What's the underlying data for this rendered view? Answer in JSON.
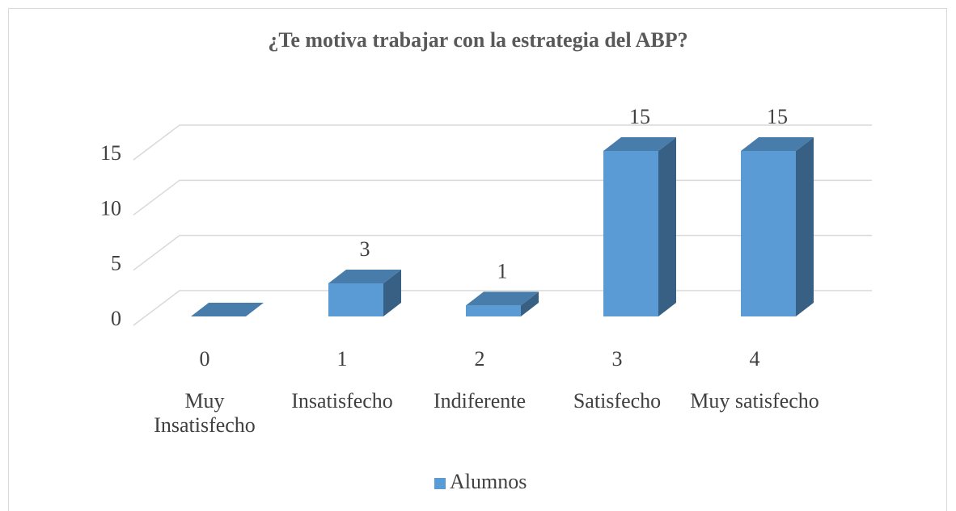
{
  "chart_data": {
    "type": "bar3d",
    "title": "¿Te motiva trabajar con la estrategia del ABP?",
    "categories": [
      "0",
      "1",
      "2",
      "3",
      "4"
    ],
    "category_labels": [
      "Muy Insatisfecho",
      "Insatisfecho",
      "Indiferente",
      "Satisfecho",
      "Muy satisfecho"
    ],
    "series": [
      {
        "name": "Alumnos",
        "color": "#5b9bd5",
        "values": [
          0,
          3,
          1,
          15,
          15
        ]
      }
    ],
    "ylim": [
      0,
      15
    ],
    "yticks": [
      0,
      5,
      10,
      15
    ],
    "grid": true,
    "legend": "bottom"
  }
}
